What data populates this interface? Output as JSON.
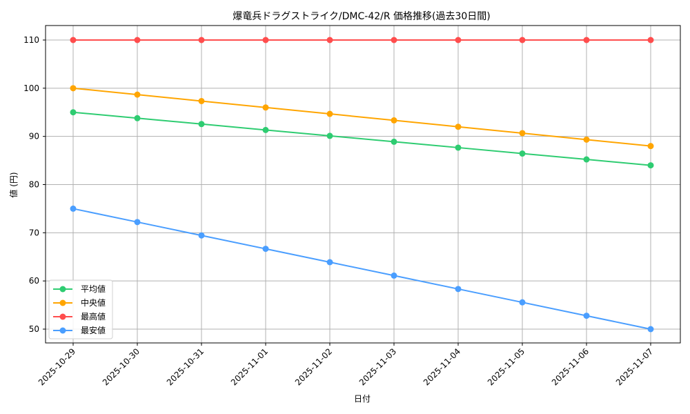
{
  "chart_data": {
    "type": "line",
    "title": "爆竜兵ドラグストライク/DMC-42/R 価格推移(過去30日間)",
    "xlabel": "日付",
    "ylabel": "値 (円)",
    "categories": [
      "2025-10-29",
      "2025-10-30",
      "2025-10-31",
      "2025-11-01",
      "2025-11-02",
      "2025-11-03",
      "2025-11-04",
      "2025-11-05",
      "2025-11-06",
      "2025-11-07"
    ],
    "yticks": [
      50,
      60,
      70,
      80,
      90,
      100,
      110
    ],
    "ylim": [
      47,
      113
    ],
    "grid": true,
    "legend_position": "lower left",
    "series": [
      {
        "name": "平均値",
        "color": "#2ecc71",
        "values": [
          95,
          93.78,
          92.56,
          91.33,
          90.11,
          88.89,
          87.67,
          86.44,
          85.22,
          84
        ]
      },
      {
        "name": "中央値",
        "color": "#ffa500",
        "values": [
          100,
          98.67,
          97.33,
          96,
          94.67,
          93.33,
          92,
          90.67,
          89.33,
          88
        ]
      },
      {
        "name": "最高値",
        "color": "#ff4d4d",
        "values": [
          110,
          110,
          110,
          110,
          110,
          110,
          110,
          110,
          110,
          110
        ]
      },
      {
        "name": "最安値",
        "color": "#4a9eff",
        "values": [
          75,
          72.22,
          69.44,
          66.67,
          63.89,
          61.11,
          58.33,
          55.56,
          52.78,
          50
        ]
      }
    ]
  }
}
